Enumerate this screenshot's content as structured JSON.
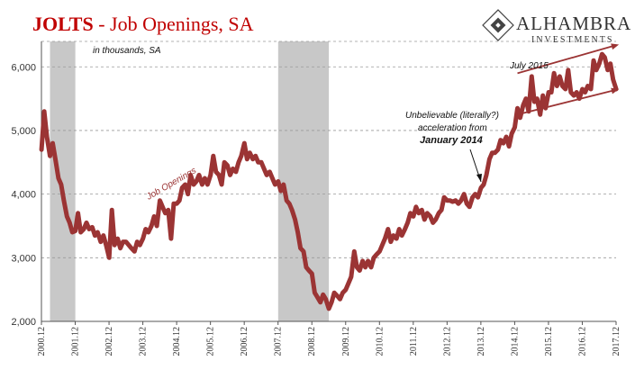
{
  "title": {
    "main": "JOLTS",
    "rest": " - Job Openings, SA"
  },
  "logo": {
    "name": "ALHAMBRA",
    "sub": "INVESTMENTS"
  },
  "colors": {
    "series": "#9b3434",
    "recession": "#c8c8c8",
    "title": "#c00000"
  },
  "annotations": {
    "units": "in thousands, SA",
    "july2015": "July 2015",
    "series_label": "Job Openings",
    "note_line1": "Unbelievable (literally?)",
    "note_line2": "acceleration from",
    "note_line3": "January 2014"
  },
  "chart_data": {
    "type": "line",
    "title": "JOLTS - Job Openings, SA",
    "ylim": [
      2000,
      6400
    ],
    "yticks": [
      2000,
      3000,
      4000,
      5000,
      6000
    ],
    "ytick_labels": [
      "2,000",
      "3,000",
      "4,000",
      "5,000",
      "6,000"
    ],
    "xlim": [
      2000.917,
      2017.917
    ],
    "xticks": [
      2000.917,
      2001.917,
      2002.917,
      2003.917,
      2004.917,
      2005.917,
      2006.917,
      2007.917,
      2008.917,
      2009.917,
      2010.917,
      2011.917,
      2012.917,
      2013.917,
      2014.917,
      2015.917,
      2016.917,
      2017.917
    ],
    "xtick_labels": [
      "2000.12",
      "2001.12",
      "2002.12",
      "2003.12",
      "2004.12",
      "2005.12",
      "2006.12",
      "2007.12",
      "2008.12",
      "2009.12",
      "2010.12",
      "2011.12",
      "2012.12",
      "2013.12",
      "2014.12",
      "2015.12",
      "2016.12",
      "2017.12"
    ],
    "recessions": [
      [
        2001.17,
        2001.92
      ],
      [
        2007.92,
        2009.42
      ]
    ],
    "series": [
      {
        "name": "Job Openings",
        "points": [
          [
            2000.92,
            4700
          ],
          [
            2001.0,
            5300
          ],
          [
            2001.08,
            4900
          ],
          [
            2001.17,
            4600
          ],
          [
            2001.25,
            4800
          ],
          [
            2001.33,
            4550
          ],
          [
            2001.42,
            4250
          ],
          [
            2001.5,
            4150
          ],
          [
            2001.58,
            3900
          ],
          [
            2001.67,
            3650
          ],
          [
            2001.75,
            3550
          ],
          [
            2001.83,
            3400
          ],
          [
            2001.92,
            3420
          ],
          [
            2002.0,
            3700
          ],
          [
            2002.08,
            3400
          ],
          [
            2002.17,
            3450
          ],
          [
            2002.25,
            3550
          ],
          [
            2002.33,
            3450
          ],
          [
            2002.42,
            3480
          ],
          [
            2002.5,
            3350
          ],
          [
            2002.58,
            3400
          ],
          [
            2002.67,
            3250
          ],
          [
            2002.75,
            3350
          ],
          [
            2002.83,
            3200
          ],
          [
            2002.92,
            3000
          ],
          [
            2003.0,
            3750
          ],
          [
            2003.08,
            3200
          ],
          [
            2003.17,
            3300
          ],
          [
            2003.25,
            3150
          ],
          [
            2003.33,
            3250
          ],
          [
            2003.42,
            3250
          ],
          [
            2003.5,
            3200
          ],
          [
            2003.58,
            3150
          ],
          [
            2003.67,
            3100
          ],
          [
            2003.75,
            3250
          ],
          [
            2003.83,
            3200
          ],
          [
            2003.92,
            3300
          ],
          [
            2004.0,
            3450
          ],
          [
            2004.08,
            3400
          ],
          [
            2004.17,
            3500
          ],
          [
            2004.25,
            3650
          ],
          [
            2004.33,
            3500
          ],
          [
            2004.42,
            3900
          ],
          [
            2004.5,
            3800
          ],
          [
            2004.58,
            3700
          ],
          [
            2004.67,
            3750
          ],
          [
            2004.75,
            3300
          ],
          [
            2004.83,
            3850
          ],
          [
            2004.92,
            3850
          ],
          [
            2005.0,
            3900
          ],
          [
            2005.08,
            4100
          ],
          [
            2005.17,
            4150
          ],
          [
            2005.25,
            4000
          ],
          [
            2005.33,
            4300
          ],
          [
            2005.42,
            4150
          ],
          [
            2005.5,
            4200
          ],
          [
            2005.58,
            4300
          ],
          [
            2005.67,
            4150
          ],
          [
            2005.75,
            4250
          ],
          [
            2005.83,
            4150
          ],
          [
            2005.92,
            4300
          ],
          [
            2006.0,
            4600
          ],
          [
            2006.08,
            4350
          ],
          [
            2006.17,
            4300
          ],
          [
            2006.25,
            4150
          ],
          [
            2006.33,
            4500
          ],
          [
            2006.42,
            4450
          ],
          [
            2006.5,
            4300
          ],
          [
            2006.58,
            4400
          ],
          [
            2006.67,
            4350
          ],
          [
            2006.75,
            4500
          ],
          [
            2006.83,
            4600
          ],
          [
            2006.92,
            4800
          ],
          [
            2007.0,
            4550
          ],
          [
            2007.08,
            4650
          ],
          [
            2007.17,
            4550
          ],
          [
            2007.25,
            4600
          ],
          [
            2007.33,
            4500
          ],
          [
            2007.42,
            4500
          ],
          [
            2007.5,
            4400
          ],
          [
            2007.58,
            4300
          ],
          [
            2007.67,
            4350
          ],
          [
            2007.75,
            4250
          ],
          [
            2007.83,
            4150
          ],
          [
            2007.92,
            4200
          ],
          [
            2008.0,
            4050
          ],
          [
            2008.08,
            4150
          ],
          [
            2008.17,
            3900
          ],
          [
            2008.25,
            3850
          ],
          [
            2008.33,
            3750
          ],
          [
            2008.42,
            3600
          ],
          [
            2008.5,
            3400
          ],
          [
            2008.58,
            3150
          ],
          [
            2008.67,
            3100
          ],
          [
            2008.75,
            2850
          ],
          [
            2008.83,
            2800
          ],
          [
            2008.92,
            2750
          ],
          [
            2009.0,
            2450
          ],
          [
            2009.08,
            2380
          ],
          [
            2009.17,
            2300
          ],
          [
            2009.25,
            2420
          ],
          [
            2009.33,
            2350
          ],
          [
            2009.42,
            2200
          ],
          [
            2009.5,
            2300
          ],
          [
            2009.58,
            2450
          ],
          [
            2009.67,
            2400
          ],
          [
            2009.75,
            2350
          ],
          [
            2009.83,
            2450
          ],
          [
            2009.92,
            2500
          ],
          [
            2010.0,
            2600
          ],
          [
            2010.08,
            2700
          ],
          [
            2010.17,
            3100
          ],
          [
            2010.25,
            2850
          ],
          [
            2010.33,
            2800
          ],
          [
            2010.42,
            2950
          ],
          [
            2010.5,
            2850
          ],
          [
            2010.58,
            2950
          ],
          [
            2010.67,
            2850
          ],
          [
            2010.75,
            3000
          ],
          [
            2010.83,
            3050
          ],
          [
            2010.92,
            3100
          ],
          [
            2011.0,
            3200
          ],
          [
            2011.08,
            3300
          ],
          [
            2011.17,
            3450
          ],
          [
            2011.25,
            3250
          ],
          [
            2011.33,
            3350
          ],
          [
            2011.42,
            3300
          ],
          [
            2011.5,
            3450
          ],
          [
            2011.58,
            3350
          ],
          [
            2011.67,
            3450
          ],
          [
            2011.75,
            3550
          ],
          [
            2011.83,
            3700
          ],
          [
            2011.92,
            3650
          ],
          [
            2012.0,
            3800
          ],
          [
            2012.08,
            3700
          ],
          [
            2012.17,
            3750
          ],
          [
            2012.25,
            3600
          ],
          [
            2012.33,
            3700
          ],
          [
            2012.42,
            3650
          ],
          [
            2012.5,
            3550
          ],
          [
            2012.58,
            3600
          ],
          [
            2012.67,
            3700
          ],
          [
            2012.75,
            3750
          ],
          [
            2012.83,
            3950
          ],
          [
            2012.92,
            3900
          ],
          [
            2013.0,
            3900
          ],
          [
            2013.08,
            3880
          ],
          [
            2013.17,
            3900
          ],
          [
            2013.25,
            3850
          ],
          [
            2013.33,
            3900
          ],
          [
            2013.42,
            4000
          ],
          [
            2013.5,
            3850
          ],
          [
            2013.58,
            3800
          ],
          [
            2013.67,
            3950
          ],
          [
            2013.75,
            4000
          ],
          [
            2013.83,
            3950
          ],
          [
            2013.92,
            4100
          ],
          [
            2014.0,
            4150
          ],
          [
            2014.08,
            4300
          ],
          [
            2014.17,
            4550
          ],
          [
            2014.25,
            4650
          ],
          [
            2014.33,
            4650
          ],
          [
            2014.42,
            4700
          ],
          [
            2014.5,
            4850
          ],
          [
            2014.58,
            4800
          ],
          [
            2014.67,
            4900
          ],
          [
            2014.75,
            4750
          ],
          [
            2014.83,
            4950
          ],
          [
            2014.92,
            5050
          ],
          [
            2015.0,
            5350
          ],
          [
            2015.08,
            5200
          ],
          [
            2015.17,
            5400
          ],
          [
            2015.25,
            5500
          ],
          [
            2015.33,
            5300
          ],
          [
            2015.42,
            5850
          ],
          [
            2015.5,
            5450
          ],
          [
            2015.58,
            5500
          ],
          [
            2015.67,
            5250
          ],
          [
            2015.75,
            5550
          ],
          [
            2015.83,
            5350
          ],
          [
            2015.92,
            5600
          ],
          [
            2016.0,
            5600
          ],
          [
            2016.08,
            5900
          ],
          [
            2016.17,
            5700
          ],
          [
            2016.25,
            5850
          ],
          [
            2016.33,
            5700
          ],
          [
            2016.42,
            5650
          ],
          [
            2016.5,
            5950
          ],
          [
            2016.58,
            5600
          ],
          [
            2016.67,
            5550
          ],
          [
            2016.75,
            5600
          ],
          [
            2016.83,
            5500
          ],
          [
            2016.92,
            5650
          ],
          [
            2017.0,
            5600
          ],
          [
            2017.08,
            5700
          ],
          [
            2017.17,
            5650
          ],
          [
            2017.25,
            6100
          ],
          [
            2017.33,
            5950
          ],
          [
            2017.42,
            6050
          ],
          [
            2017.5,
            6200
          ],
          [
            2017.58,
            6150
          ],
          [
            2017.67,
            5950
          ],
          [
            2017.75,
            6050
          ],
          [
            2017.83,
            5800
          ],
          [
            2017.92,
            5650
          ]
        ]
      }
    ],
    "channel": {
      "upper": [
        [
          2015.0,
          5900
        ],
        [
          2018.0,
          6350
        ]
      ],
      "lower": [
        [
          2015.0,
          5250
        ],
        [
          2018.0,
          5650
        ]
      ]
    }
  }
}
